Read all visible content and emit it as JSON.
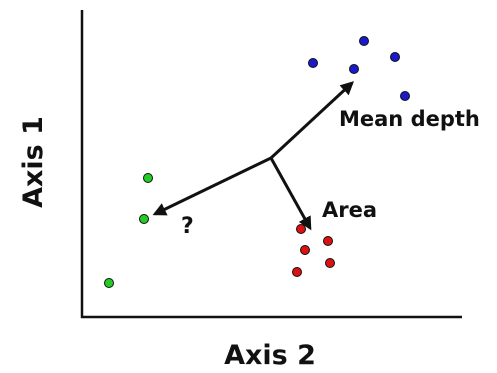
{
  "chart_data": {
    "type": "scatter",
    "xlabel": "Axis 2",
    "ylabel": "Axis 1",
    "grid": false,
    "series": [
      {
        "color": "#1a1acc",
        "points": [
          [
            313,
            63
          ],
          [
            364,
            41
          ],
          [
            395,
            57
          ],
          [
            354,
            69
          ],
          [
            405,
            96
          ]
        ]
      },
      {
        "color": "#dd1111",
        "points": [
          [
            301,
            229
          ],
          [
            328,
            241
          ],
          [
            305,
            250
          ],
          [
            330,
            263
          ],
          [
            297,
            272
          ]
        ]
      },
      {
        "color": "#22cc22",
        "points": [
          [
            148,
            178
          ],
          [
            144,
            219
          ],
          [
            109,
            283
          ]
        ]
      }
    ],
    "arrows": [
      {
        "label": "Mean depth",
        "to": [
          352,
          83
        ]
      },
      {
        "label": "Area",
        "to": [
          310,
          228
        ]
      },
      {
        "label": "?",
        "to": [
          155,
          214
        ]
      }
    ],
    "arrow_origin": [
      271,
      158
    ]
  }
}
